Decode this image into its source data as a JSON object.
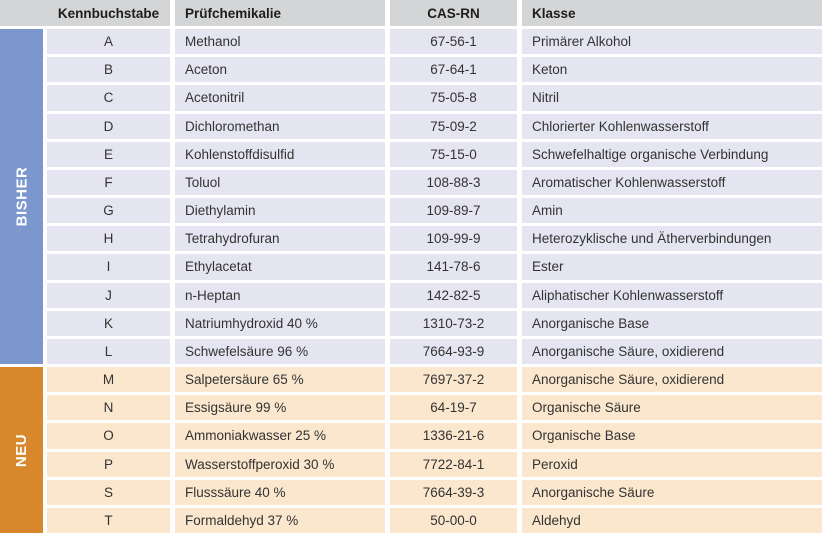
{
  "colors": {
    "header_bg": "#d4d5d7",
    "header_text": "#1d1d1b",
    "body_text": "#333333",
    "bisher_side": "#7b97ce",
    "neu_side": "#d8882a",
    "bisher_row": "#e4e5f0",
    "neu_row": "#fbe7cd"
  },
  "sidebar": {
    "bisher_label": "BISHER",
    "neu_label": "NEU"
  },
  "table": {
    "headers": {
      "kennbuchstabe": "Kennbuchstabe",
      "pruefchemikalie": "Prüfchemikalie",
      "cas": "CAS-RN",
      "klasse": "Klasse"
    },
    "rows": [
      {
        "letter": "A",
        "chemical": "Methanol",
        "cas": "67-56-1",
        "klasse": "Primärer Alkohol",
        "group": "bisher"
      },
      {
        "letter": "B",
        "chemical": "Aceton",
        "cas": "67-64-1",
        "klasse": "Keton",
        "group": "bisher"
      },
      {
        "letter": "C",
        "chemical": "Acetonitril",
        "cas": "75-05-8",
        "klasse": "Nitril",
        "group": "bisher"
      },
      {
        "letter": "D",
        "chemical": "Dichloromethan",
        "cas": "75-09-2",
        "klasse": "Chlorierter Kohlenwasserstoff",
        "group": "bisher"
      },
      {
        "letter": "E",
        "chemical": "Kohlenstoffdisulfid",
        "cas": "75-15-0",
        "klasse": "Schwefelhaltige organische Verbindung",
        "group": "bisher"
      },
      {
        "letter": "F",
        "chemical": "Toluol",
        "cas": "108-88-3",
        "klasse": "Aromatischer Kohlenwasserstoff",
        "group": "bisher"
      },
      {
        "letter": "G",
        "chemical": "Diethylamin",
        "cas": "109-89-7",
        "klasse": "Amin",
        "group": "bisher"
      },
      {
        "letter": "H",
        "chemical": "Tetrahydrofuran",
        "cas": "109-99-9",
        "klasse": "Heterozyklische und Ätherverbindungen",
        "group": "bisher"
      },
      {
        "letter": "I",
        "chemical": "Ethylacetat",
        "cas": "141-78-6",
        "klasse": "Ester",
        "group": "bisher"
      },
      {
        "letter": "J",
        "chemical": "n-Heptan",
        "cas": "142-82-5",
        "klasse": "Aliphatischer Kohlenwasserstoff",
        "group": "bisher"
      },
      {
        "letter": "K",
        "chemical": "Natriumhydroxid 40 %",
        "cas": "1310-73-2",
        "klasse": "Anorganische Base",
        "group": "bisher"
      },
      {
        "letter": "L",
        "chemical": "Schwefelsäure 96 %",
        "cas": "7664-93-9",
        "klasse": "Anorganische Säure, oxidierend",
        "group": "bisher"
      },
      {
        "letter": "M",
        "chemical": "Salpetersäure 65 %",
        "cas": "7697-37-2",
        "klasse": "Anorganische Säure, oxidierend",
        "group": "neu"
      },
      {
        "letter": "N",
        "chemical": "Essigsäure 99 %",
        "cas": "64-19-7",
        "klasse": "Organische Säure",
        "group": "neu"
      },
      {
        "letter": "O",
        "chemical": "Ammoniakwasser 25 %",
        "cas": "1336-21-6",
        "klasse": "Organische Base",
        "group": "neu"
      },
      {
        "letter": "P",
        "chemical": "Wasserstoffperoxid 30 %",
        "cas": "7722-84-1",
        "klasse": "Peroxid",
        "group": "neu"
      },
      {
        "letter": "S",
        "chemical": "Flusssäure 40 %",
        "cas": "7664-39-3",
        "klasse": "Anorganische Säure",
        "group": "neu"
      },
      {
        "letter": "T",
        "chemical": "Formaldehyd 37 %",
        "cas": "50-00-0",
        "klasse": "Aldehyd",
        "group": "neu"
      }
    ]
  }
}
